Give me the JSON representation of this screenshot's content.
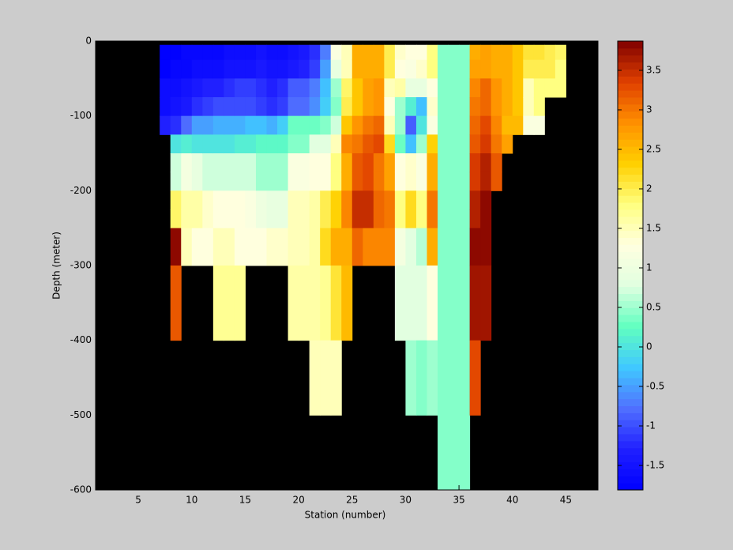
{
  "chart_data": {
    "type": "heatmap",
    "xlabel": "Station (number)",
    "ylabel": "Depth (meter)",
    "xlim": [
      1,
      48
    ],
    "ylim": [
      -600,
      0
    ],
    "xticks": [
      5,
      10,
      15,
      20,
      25,
      30,
      35,
      40,
      45
    ],
    "yticks": [
      -600,
      -500,
      -400,
      -300,
      -200,
      -100,
      0
    ],
    "x_bins": [
      7,
      8,
      9,
      10,
      11,
      12,
      13,
      14,
      15,
      16,
      17,
      18,
      19,
      20,
      21,
      22,
      23,
      24,
      25,
      26,
      27,
      28,
      29,
      30,
      31,
      32,
      33,
      34,
      35,
      36,
      37,
      38,
      39,
      40,
      41,
      42,
      43,
      44,
      45
    ],
    "y_bins": [
      -5,
      -25,
      -50,
      -75,
      -100,
      -125,
      -150,
      -175,
      -200,
      -225,
      -250,
      -300,
      -400,
      -500,
      -600
    ],
    "values": [
      [
        -1.8,
        -1.8,
        -1.6,
        -1.6,
        -1.3,
        null,
        null,
        null,
        null,
        null,
        null,
        null,
        null,
        null
      ],
      [
        -1.8,
        -1.7,
        -1.6,
        -1.5,
        -1.2,
        0.0,
        0.7,
        0.7,
        1.9,
        1.9,
        3.8,
        3.2,
        null,
        null
      ],
      [
        -1.7,
        -1.7,
        -1.5,
        -1.4,
        -0.8,
        0.1,
        1.1,
        1.1,
        1.6,
        1.6,
        1.5,
        null,
        null,
        null
      ],
      [
        -1.7,
        -1.6,
        -1.4,
        -1.2,
        -0.5,
        0.0,
        0.9,
        0.9,
        1.6,
        1.6,
        1.3,
        null,
        null,
        null
      ],
      [
        -1.7,
        -1.6,
        -1.3,
        -1.1,
        -0.5,
        0.0,
        0.7,
        0.7,
        1.4,
        1.4,
        1.3,
        null,
        null,
        null
      ],
      [
        -1.7,
        -1.6,
        -1.3,
        -1.0,
        -0.4,
        0.0,
        0.7,
        0.7,
        1.3,
        1.3,
        1.5,
        1.7,
        null,
        null
      ],
      [
        -1.6,
        -1.5,
        -1.2,
        -1.0,
        -0.4,
        0.0,
        0.7,
        0.7,
        1.3,
        1.3,
        1.5,
        1.7,
        null,
        null
      ],
      [
        -1.6,
        -1.5,
        -1.1,
        -1.0,
        -0.4,
        0.1,
        0.7,
        0.7,
        1.3,
        1.3,
        1.3,
        1.7,
        null,
        null
      ],
      [
        -1.6,
        -1.5,
        -1.1,
        -1.0,
        -0.3,
        0.1,
        0.7,
        0.7,
        1.2,
        1.2,
        1.3,
        null,
        null,
        null
      ],
      [
        -1.5,
        -1.4,
        -1.2,
        -1.1,
        -0.3,
        0.2,
        0.5,
        0.5,
        1.0,
        1.0,
        1.3,
        null,
        null,
        null
      ],
      [
        -1.6,
        -1.5,
        -1.3,
        -1.2,
        -0.4,
        0.2,
        0.5,
        0.5,
        0.9,
        0.9,
        1.4,
        null,
        null,
        null
      ],
      [
        -1.6,
        -1.5,
        -1.2,
        -1.1,
        -0.2,
        0.2,
        0.5,
        0.5,
        0.9,
        0.9,
        1.4,
        null,
        null,
        null
      ],
      [
        -1.5,
        -1.4,
        -0.9,
        -0.8,
        0.3,
        0.4,
        1.2,
        1.2,
        1.5,
        1.5,
        1.5,
        1.6,
        null,
        null
      ],
      [
        -1.4,
        -1.3,
        -0.9,
        -0.8,
        0.3,
        0.4,
        1.2,
        1.2,
        1.5,
        1.5,
        1.5,
        1.6,
        null,
        null
      ],
      [
        -1.2,
        -1.1,
        -0.7,
        -0.6,
        0.3,
        0.8,
        1.3,
        1.3,
        1.6,
        1.6,
        1.6,
        1.6,
        1.5,
        null
      ],
      [
        -0.7,
        -0.5,
        -0.3,
        -0.2,
        0.4,
        0.8,
        1.3,
        1.3,
        2.0,
        2.0,
        2.2,
        1.7,
        1.5,
        null
      ],
      [
        1.2,
        0.9,
        0.5,
        0.4,
        0.7,
        1.5,
        1.8,
        1.8,
        2.3,
        2.3,
        2.6,
        2.1,
        1.5,
        null
      ],
      [
        1.5,
        1.5,
        1.9,
        2.0,
        2.4,
        2.9,
        2.6,
        2.6,
        2.9,
        2.9,
        2.6,
        2.5,
        null,
        null
      ],
      [
        2.6,
        2.6,
        2.4,
        2.4,
        2.8,
        3.0,
        3.2,
        3.2,
        3.5,
        3.5,
        3.1,
        null,
        null,
        null
      ],
      [
        2.6,
        2.6,
        2.7,
        2.7,
        3.0,
        3.2,
        3.3,
        3.3,
        3.5,
        3.5,
        2.9,
        null,
        null,
        null
      ],
      [
        2.6,
        2.6,
        2.8,
        2.8,
        3.1,
        3.3,
        3.0,
        3.0,
        3.1,
        3.1,
        2.9,
        null,
        null,
        null
      ],
      [
        2.0,
        2.0,
        1.5,
        1.3,
        1.5,
        2.2,
        2.7,
        2.7,
        3.0,
        3.0,
        2.9,
        null,
        null,
        null
      ],
      [
        1.4,
        1.3,
        1.6,
        0.5,
        0.5,
        0.3,
        1.3,
        1.3,
        1.8,
        1.8,
        1.1,
        0.8,
        null,
        null
      ],
      [
        1.3,
        1.2,
        0.9,
        0.1,
        -0.9,
        -0.3,
        1.4,
        1.4,
        2.2,
        2.2,
        0.8,
        0.8,
        0.5,
        null
      ],
      [
        1.3,
        1.4,
        0.9,
        -0.3,
        0.0,
        0.5,
        1.2,
        1.2,
        1.8,
        1.8,
        0.6,
        0.8,
        0.4,
        null
      ],
      [
        1.8,
        1.8,
        1.3,
        1.4,
        1.2,
        2.3,
        2.6,
        2.6,
        3.0,
        3.0,
        2.6,
        1.3,
        0.5,
        null
      ],
      [
        0.4,
        0.4,
        0.4,
        0.4,
        0.4,
        0.4,
        0.4,
        0.4,
        0.4,
        0.4,
        0.4,
        0.4,
        0.4,
        0.4
      ],
      [
        0.4,
        0.4,
        0.4,
        0.4,
        0.4,
        0.4,
        0.4,
        0.4,
        0.4,
        0.4,
        0.4,
        0.4,
        0.4,
        0.4
      ],
      [
        0.4,
        0.4,
        0.4,
        0.4,
        0.4,
        0.4,
        0.4,
        0.4,
        0.4,
        0.4,
        0.4,
        0.4,
        0.4,
        0.4
      ],
      [
        2.6,
        2.7,
        2.9,
        3.0,
        3.1,
        3.2,
        3.4,
        3.4,
        3.6,
        3.6,
        3.8,
        3.7,
        3.3,
        null
      ],
      [
        2.7,
        2.7,
        3.1,
        3.1,
        3.3,
        3.4,
        3.6,
        3.6,
        3.8,
        3.8,
        3.8,
        3.7,
        null,
        null
      ],
      [
        2.6,
        2.6,
        2.8,
        2.8,
        2.9,
        3.0,
        3.2,
        3.2,
        null,
        null,
        null,
        null,
        null,
        null
      ],
      [
        2.6,
        2.6,
        2.6,
        2.6,
        2.5,
        2.7,
        null,
        null,
        null,
        null,
        null,
        null,
        null,
        null
      ],
      [
        2.4,
        2.4,
        2.4,
        2.4,
        2.5,
        null,
        null,
        null,
        null,
        null,
        null,
        null,
        null,
        null
      ],
      [
        2.1,
        2.0,
        1.5,
        1.5,
        1.2,
        null,
        null,
        null,
        null,
        null,
        null,
        null,
        null,
        null
      ],
      [
        2.1,
        2.0,
        1.8,
        1.8,
        1.2,
        null,
        null,
        null,
        null,
        null,
        null,
        null,
        null,
        null
      ],
      [
        2.0,
        2.0,
        1.8,
        null,
        null,
        null,
        null,
        null,
        null,
        null,
        null,
        null,
        null,
        null
      ],
      [
        1.9,
        1.8,
        1.8,
        null,
        null,
        null,
        null,
        null,
        null,
        null,
        null,
        null,
        null,
        null
      ]
    ],
    "clim": [
      -1.81,
      3.87
    ],
    "cticks": [
      -1.5,
      -1,
      -0.5,
      0,
      0.5,
      1,
      1.5,
      2,
      2.5,
      3,
      3.5
    ],
    "colormap": [
      "#0000ff",
      "#2020ff",
      "#5070ff",
      "#40c8ff",
      "#60ffc0",
      "#e0ffe0",
      "#ffffe0",
      "#ffff80",
      "#ffd000",
      "#ff9000",
      "#e04000",
      "#800000"
    ],
    "background": "#000000"
  }
}
